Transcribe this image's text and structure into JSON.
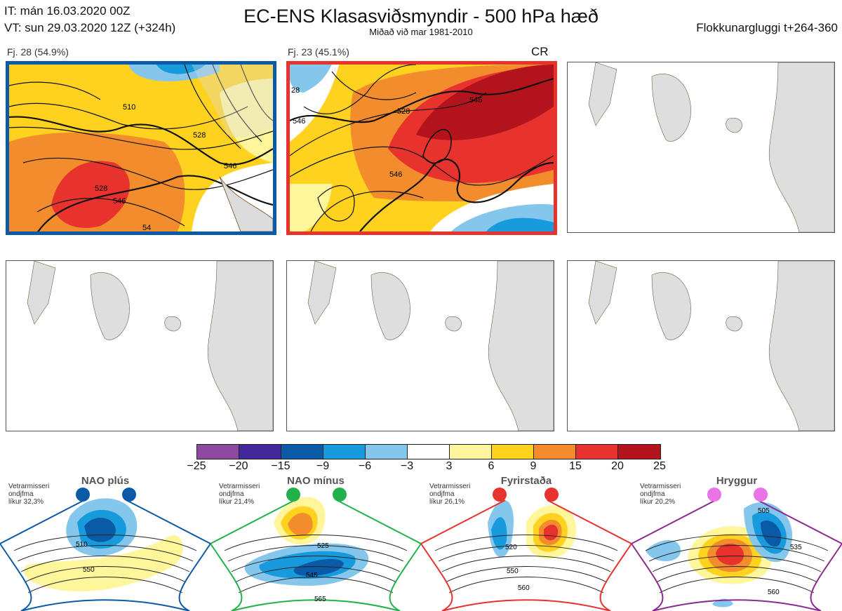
{
  "header": {
    "it_line": "IT: mán 16.03.2020 00Z",
    "vt_line": "VT: sun 29.03.2020 12Z  (+324h)",
    "title": "EC-ENS Klasasviðsmyndir - 500 hPa hæð",
    "subtitle": "Miðað við mar 1981-2010",
    "window": "Flokkunargluggi t+264-360"
  },
  "panels": [
    {
      "label": "Fj. 28 (54.9%)",
      "tag": "",
      "border_color": "#0b5aa7",
      "contours": [
        "510",
        "528",
        "528",
        "546",
        "546",
        "54"
      ]
    },
    {
      "label": "Fj. 23 (45.1%)",
      "tag": "CR",
      "border_color": "#e8322e",
      "contours": [
        "528",
        "546",
        "546",
        "28",
        "546"
      ]
    },
    {
      "label": "",
      "tag": "",
      "border_color": "#666666",
      "contours": []
    },
    {
      "label": "",
      "tag": "",
      "border_color": "#666666",
      "contours": []
    },
    {
      "label": "",
      "tag": "",
      "border_color": "#666666",
      "contours": []
    },
    {
      "label": "",
      "tag": "",
      "border_color": "#666666",
      "contours": []
    }
  ],
  "colorbar": {
    "colors": [
      "#8d4a9e",
      "#44279a",
      "#0b5aa7",
      "#189bdd",
      "#85c7ec",
      "#ffffff",
      "#fff59b",
      "#ffd220",
      "#f28c2d",
      "#e8322e",
      "#b3131b"
    ],
    "ticks": [
      "−25",
      "−20",
      "−15",
      "−9",
      "−6",
      "−3",
      "3",
      "6",
      "9",
      "15",
      "20",
      "25"
    ]
  },
  "regimes": [
    {
      "name": "NAO plús",
      "info": [
        "Vetrarmisseri",
        "ondjfma",
        "líkur 32,3%"
      ],
      "color": "#0b5aa7",
      "contours": [
        "510",
        "550"
      ]
    },
    {
      "name": "NAO mínus",
      "info": [
        "Vetrarmisseri",
        "ondjfma",
        "líkur 21,4%"
      ],
      "color": "#22b14c",
      "contours": [
        "525",
        "545",
        "565"
      ]
    },
    {
      "name": "Fyrirstaða",
      "info": [
        "Vetrarmisseri",
        "ondjfma",
        "líkur 26,1%"
      ],
      "color": "#e8322e",
      "contours": [
        "520",
        "550",
        "560"
      ]
    },
    {
      "name": "Hryggur",
      "info": [
        "Vetrarmisseri",
        "ondjfma",
        "líkur 20,2%"
      ],
      "color": "#8b2a91",
      "contours": [
        "505",
        "535",
        "560"
      ]
    }
  ]
}
